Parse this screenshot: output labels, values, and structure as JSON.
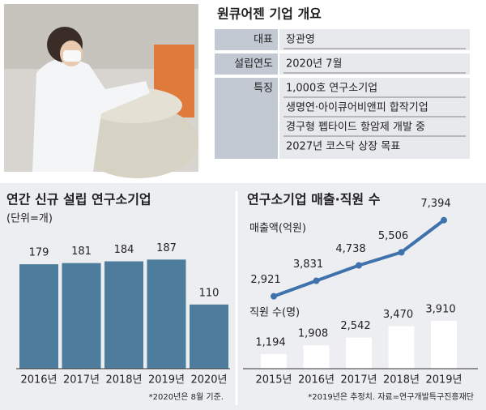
{
  "info": {
    "title": "원큐어젠 기업 개요",
    "rows": [
      {
        "label": "대표",
        "values": [
          "장관영"
        ]
      },
      {
        "label": "설립연도",
        "values": [
          "2020년 7월"
        ]
      },
      {
        "label": "특징",
        "values": [
          "1,000호 연구소기업",
          "생명연·아이큐어비앤피 합작기업",
          "경구형 펩타이드 항암제 개발 중",
          "2027년 코스닥 상장 목표"
        ]
      }
    ]
  },
  "chart_data": [
    {
      "type": "bar",
      "title": "연간 신규 설립 연구소기업",
      "subtitle": "(단위=개)",
      "categories": [
        "2016년",
        "2017년",
        "2018년",
        "2019년",
        "2020년"
      ],
      "values": [
        179,
        181,
        184,
        187,
        110
      ],
      "color": "#4d7c9c",
      "note": "*2020년은 8월 기준."
    },
    {
      "type": "combo",
      "title": "연구소기업 매출·직원 수",
      "categories": [
        "2015년",
        "2016년",
        "2017년",
        "2018년",
        "2019년"
      ],
      "series": [
        {
          "name": "매출액(억원)",
          "type": "line",
          "color": "#3f72ad",
          "values": [
            2921,
            3831,
            4738,
            5506,
            7394
          ],
          "value_labels": [
            "2,921",
            "3,831",
            "4,738",
            "5,506",
            "7,394"
          ]
        },
        {
          "name": "직원 수(명)",
          "type": "bar",
          "color": "#ffffff",
          "values": [
            1194,
            1908,
            2542,
            3470,
            3910
          ],
          "value_labels": [
            "1,194",
            "1,908",
            "2,542",
            "3,470",
            "3,910"
          ]
        }
      ],
      "note": "*2019년은 추정치. 자료=연구개발특구진흥재단"
    }
  ]
}
